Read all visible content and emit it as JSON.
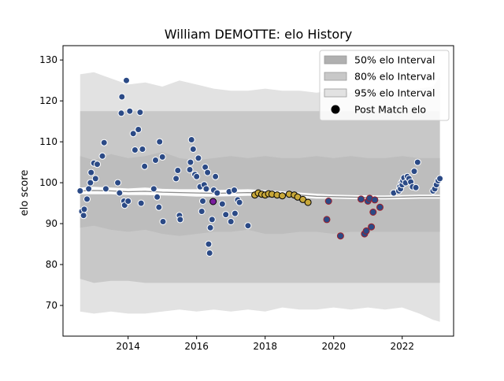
{
  "chart_data": {
    "type": "scatter",
    "title": "William DEMOTTE: elo History",
    "xlabel": "",
    "ylabel": "elo score",
    "xlim": [
      2012.1,
      2023.5
    ],
    "ylim": [
      62.5,
      133.5
    ],
    "xticks": [
      2014,
      2016,
      2018,
      2020,
      2022
    ],
    "yticks": [
      70,
      80,
      90,
      100,
      110,
      120,
      130
    ],
    "grid": false,
    "legend_position": "top-right",
    "legend": [
      {
        "label": "50% elo Interval",
        "kind": "band",
        "color": "#b0b0b0"
      },
      {
        "label": "80% elo Interval",
        "kind": "band",
        "color": "#c8c8c8"
      },
      {
        "label": "95% elo Interval",
        "kind": "band",
        "color": "#e2e2e2"
      },
      {
        "label": "Post Match elo",
        "kind": "marker",
        "color": "#000000"
      }
    ],
    "bands": {
      "x": [
        2012.6,
        2013.0,
        2013.5,
        2014.0,
        2014.5,
        2015.0,
        2015.5,
        2016.0,
        2016.5,
        2017.0,
        2017.5,
        2018.0,
        2018.5,
        2019.0,
        2019.5,
        2020.0,
        2020.5,
        2021.0,
        2021.5,
        2022.0,
        2022.5,
        2022.9,
        2023.1
      ],
      "p95_upper": [
        126.5,
        127.0,
        125.5,
        124.0,
        124.5,
        123.5,
        125.0,
        124.0,
        123.0,
        122.5,
        122.5,
        123.0,
        122.5,
        122.5,
        122.0,
        122.5,
        122.0,
        123.0,
        122.0,
        122.5,
        123.0,
        123.5,
        126.0
      ],
      "p80_upper": [
        117.5,
        117.5,
        117.5,
        117.5,
        117.5,
        117.5,
        117.5,
        117.5,
        117.5,
        117.5,
        117.5,
        117.5,
        117.5,
        117.5,
        117.5,
        117.5,
        117.5,
        117.5,
        117.5,
        117.5,
        117.5,
        117.5,
        117.5
      ],
      "p50_upper": [
        106.5,
        105.5,
        107.0,
        106.0,
        106.5,
        107.5,
        106.0,
        105.5,
        106.0,
        106.5,
        106.0,
        106.5,
        106.0,
        106.0,
        106.5,
        106.0,
        106.5,
        106.0,
        106.0,
        106.5,
        106.0,
        106.0,
        106.0
      ],
      "p50_lower": [
        89.0,
        89.5,
        88.5,
        88.0,
        88.5,
        87.5,
        87.0,
        87.5,
        88.0,
        88.0,
        88.5,
        87.5,
        87.5,
        88.0,
        88.0,
        87.5,
        88.0,
        88.0,
        88.0,
        88.0,
        88.0,
        88.0,
        88.0
      ],
      "p80_lower": [
        76.5,
        75.5,
        76.0,
        76.0,
        75.5,
        75.5,
        75.5,
        75.5,
        75.5,
        75.5,
        75.5,
        75.5,
        75.5,
        75.5,
        75.5,
        75.5,
        75.5,
        75.5,
        75.5,
        75.5,
        75.5,
        75.5,
        75.5
      ],
      "p95_lower": [
        68.5,
        68.0,
        68.5,
        68.0,
        68.0,
        68.5,
        69.0,
        68.5,
        69.0,
        68.5,
        69.0,
        68.5,
        69.5,
        69.0,
        69.0,
        69.5,
        69.0,
        69.5,
        69.0,
        69.5,
        68.0,
        66.5,
        66.0
      ]
    },
    "mean_line": {
      "x": [
        2012.6,
        2013.0,
        2013.5,
        2014.0,
        2014.5,
        2015.0,
        2015.5,
        2016.0,
        2016.5,
        2017.0,
        2017.5,
        2018.0,
        2018.5,
        2019.0,
        2019.5,
        2020.0,
        2020.5,
        2021.0,
        2021.5,
        2022.0,
        2022.5,
        2023.1
      ],
      "y": [
        98.0,
        98.1,
        98.0,
        97.8,
        97.9,
        97.7,
        97.6,
        97.5,
        97.4,
        97.5,
        97.6,
        97.5,
        97.3,
        97.0,
        96.7,
        96.6,
        96.5,
        96.4,
        96.4,
        96.5,
        96.6,
        96.6
      ]
    },
    "inner_band": {
      "x": [
        2012.6,
        2013.0,
        2013.5,
        2014.0,
        2014.5,
        2015.0,
        2015.5,
        2016.0,
        2016.5,
        2017.0,
        2017.5,
        2018.0,
        2018.5,
        2019.0,
        2019.5,
        2020.0,
        2020.5,
        2021.0,
        2021.5,
        2022.0,
        2022.5,
        2023.1
      ],
      "upper": [
        98.8,
        99.0,
        98.8,
        98.6,
        98.8,
        98.5,
        98.4,
        98.4,
        98.2,
        98.3,
        98.4,
        98.2,
        97.9,
        97.6,
        97.3,
        97.1,
        97.0,
        96.9,
        96.9,
        97.0,
        97.1,
        97.1
      ],
      "lower": [
        97.2,
        97.2,
        97.2,
        97.0,
        97.0,
        96.9,
        96.8,
        96.6,
        96.6,
        96.7,
        96.8,
        96.8,
        96.7,
        96.4,
        96.1,
        96.1,
        96.0,
        95.9,
        95.9,
        96.0,
        96.1,
        96.1
      ]
    },
    "series": [
      {
        "marker_color": "#2b4a86",
        "edge_color": "#ffffff",
        "points": [
          [
            2012.6,
            98.0
          ],
          [
            2012.65,
            93.0
          ],
          [
            2012.7,
            92.0
          ],
          [
            2012.72,
            93.5
          ],
          [
            2012.8,
            96.0
          ],
          [
            2012.85,
            98.5
          ],
          [
            2012.9,
            100.0
          ],
          [
            2012.92,
            102.5
          ],
          [
            2013.0,
            104.8
          ],
          [
            2013.05,
            101.0
          ],
          [
            2013.1,
            104.5
          ],
          [
            2013.25,
            106.5
          ],
          [
            2013.3,
            109.8
          ],
          [
            2013.35,
            98.5
          ],
          [
            2013.7,
            100.0
          ],
          [
            2013.75,
            97.5
          ],
          [
            2013.8,
            117.0
          ],
          [
            2013.82,
            121.0
          ],
          [
            2013.88,
            95.5
          ],
          [
            2013.9,
            94.5
          ],
          [
            2013.95,
            125.0
          ],
          [
            2014.0,
            95.5
          ],
          [
            2014.05,
            117.5
          ],
          [
            2014.15,
            112.0
          ],
          [
            2014.2,
            108.0
          ],
          [
            2014.3,
            113.0
          ],
          [
            2014.35,
            117.2
          ],
          [
            2014.38,
            95.0
          ],
          [
            2014.42,
            108.2
          ],
          [
            2014.48,
            104.0
          ],
          [
            2014.75,
            98.5
          ],
          [
            2014.8,
            105.5
          ],
          [
            2014.85,
            96.5
          ],
          [
            2014.9,
            94.0
          ],
          [
            2014.92,
            110.0
          ],
          [
            2015.0,
            106.3
          ],
          [
            2015.02,
            90.5
          ],
          [
            2015.4,
            101.0
          ],
          [
            2015.45,
            103.0
          ],
          [
            2015.5,
            92.0
          ],
          [
            2015.52,
            91.0
          ],
          [
            2015.8,
            103.2
          ],
          [
            2015.82,
            105.0
          ],
          [
            2015.85,
            110.5
          ],
          [
            2015.9,
            108.2
          ],
          [
            2015.95,
            102.0
          ],
          [
            2016.0,
            101.5
          ],
          [
            2016.05,
            106.0
          ],
          [
            2016.1,
            99.0
          ],
          [
            2016.15,
            93.0
          ],
          [
            2016.18,
            95.5
          ],
          [
            2016.22,
            99.5
          ],
          [
            2016.25,
            103.8
          ],
          [
            2016.28,
            98.5
          ],
          [
            2016.32,
            102.5
          ],
          [
            2016.35,
            85.0
          ],
          [
            2016.38,
            82.8
          ],
          [
            2016.4,
            89.0
          ],
          [
            2016.45,
            91.0
          ],
          [
            2016.5,
            98.2
          ],
          [
            2016.55,
            101.5
          ],
          [
            2016.6,
            97.5
          ],
          [
            2016.75,
            94.8
          ],
          [
            2016.85,
            92.2
          ],
          [
            2016.95,
            97.8
          ],
          [
            2017.0,
            90.5
          ],
          [
            2017.1,
            98.2
          ],
          [
            2017.12,
            92.5
          ],
          [
            2017.2,
            95.8
          ],
          [
            2017.25,
            95.2
          ],
          [
            2017.5,
            89.5
          ],
          [
            2021.75,
            97.5
          ],
          [
            2021.9,
            98.0
          ],
          [
            2021.93,
            99.0
          ],
          [
            2021.95,
            98.5
          ],
          [
            2021.98,
            100.0
          ],
          [
            2022.0,
            99.5
          ],
          [
            2022.02,
            100.5
          ],
          [
            2022.05,
            101.2
          ],
          [
            2022.1,
            100.0
          ],
          [
            2022.15,
            101.5
          ],
          [
            2022.2,
            101.0
          ],
          [
            2022.25,
            100.2
          ],
          [
            2022.3,
            99.0
          ],
          [
            2022.35,
            102.8
          ],
          [
            2022.4,
            98.8
          ],
          [
            2022.45,
            105.0
          ],
          [
            2022.9,
            98.0
          ],
          [
            2022.95,
            98.5
          ],
          [
            2023.0,
            99.5
          ],
          [
            2023.05,
            100.5
          ],
          [
            2023.1,
            101.0
          ]
        ]
      },
      {
        "marker_color": "#2b4a86",
        "edge_color": "#a01e28",
        "points": [
          [
            2019.8,
            91.0
          ],
          [
            2019.85,
            95.5
          ],
          [
            2020.2,
            87.0
          ],
          [
            2020.8,
            96.0
          ],
          [
            2020.9,
            87.5
          ],
          [
            2020.95,
            88.2
          ],
          [
            2021.0,
            95.5
          ],
          [
            2021.05,
            96.2
          ],
          [
            2021.1,
            89.2
          ],
          [
            2021.15,
            92.8
          ],
          [
            2021.2,
            95.8
          ],
          [
            2021.35,
            94.0
          ]
        ]
      },
      {
        "marker_color": "#c8a83a",
        "edge_color": "#000000",
        "points": [
          [
            2017.7,
            97.0
          ],
          [
            2017.8,
            97.5
          ],
          [
            2017.9,
            97.2
          ],
          [
            2018.0,
            97.0
          ],
          [
            2018.1,
            97.3
          ],
          [
            2018.2,
            97.2
          ],
          [
            2018.35,
            97.0
          ],
          [
            2018.5,
            96.8
          ],
          [
            2018.7,
            97.2
          ],
          [
            2018.85,
            97.0
          ],
          [
            2018.95,
            96.5
          ],
          [
            2019.1,
            95.9
          ],
          [
            2019.25,
            95.2
          ]
        ]
      },
      {
        "marker_color": "#7a1e9e",
        "edge_color": "#000000",
        "points": [
          [
            2016.48,
            95.4
          ]
        ]
      }
    ]
  }
}
